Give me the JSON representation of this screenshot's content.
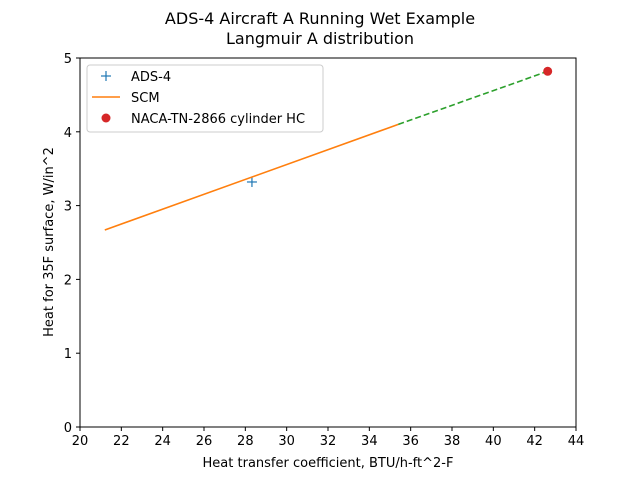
{
  "chart_data": {
    "type": "line",
    "title": "ADS-4 Aircraft A Running Wet Example",
    "subtitle": "Langmuir A distribution",
    "xlabel": "Heat transfer coefficient, BTU/h-ft^2-F",
    "ylabel": "Heat for 35F surface, W/in^2",
    "xlim": [
      20,
      44
    ],
    "ylim": [
      0,
      5
    ],
    "xticks": [
      "20",
      "22",
      "24",
      "26",
      "28",
      "30",
      "32",
      "34",
      "36",
      "38",
      "40",
      "42",
      "44"
    ],
    "yticks": [
      "0",
      "1",
      "2",
      "3",
      "4",
      "5"
    ],
    "grid": false,
    "legend_position": "upper-left",
    "series": [
      {
        "name": "ADS-4",
        "kind": "marker-plus",
        "color": "#1f77b4",
        "x": [
          28.32
        ],
        "y": [
          3.32
        ]
      },
      {
        "name": "SCM",
        "kind": "solid-line",
        "color": "#ff7f0e",
        "x": [
          21.2,
          35.4
        ],
        "y": [
          2.67,
          4.1
        ]
      },
      {
        "kind": "dashed-line",
        "color": "#2ca02c",
        "x": [
          35.4,
          42.63
        ],
        "y": [
          4.1,
          4.82
        ]
      },
      {
        "name": "NACA-TN-2866 cylinder HC",
        "kind": "marker-circle",
        "color": "#d62728",
        "x": [
          42.63
        ],
        "y": [
          4.82
        ]
      }
    ]
  }
}
